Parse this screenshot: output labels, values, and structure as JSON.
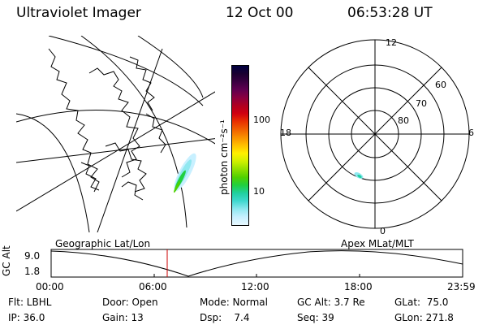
{
  "header": {
    "instrument": "Ultraviolet Imager",
    "date": "12 Oct 00",
    "time": "06:53:28 UT"
  },
  "colorbar": {
    "unit_label": "photon cm⁻²s⁻¹",
    "tick_labels": [
      "100",
      "10"
    ],
    "colors": [
      "#000040",
      "#1a0030",
      "#3a0040",
      "#600050",
      "#8a0040",
      "#b00020",
      "#d00010",
      "#e83000",
      "#f06000",
      "#f89000",
      "#ffc000",
      "#fff000",
      "#d0f000",
      "#90e000",
      "#50d000",
      "#20d040",
      "#20d0a0",
      "#40d8d0",
      "#90e8f0",
      "#c8f0ff",
      "#e8f8ff"
    ]
  },
  "left_map": {
    "projection_label": "Geographic Lat/Lon"
  },
  "right_map": {
    "projection_label": "Apex MLat/MLT",
    "mlt_labels": {
      "top": "12",
      "bottom": "0",
      "left": "18",
      "right": "6"
    },
    "mlat_labels": [
      "60",
      "70",
      "80"
    ]
  },
  "altitude_panel": {
    "axis_label": "GC Alt",
    "y_ticks": [
      "9.0",
      "1.8"
    ],
    "x_ticks": [
      "00:00",
      "06:00",
      "12:00",
      "18:00",
      "23:59"
    ],
    "marker_color": "#cc0000"
  },
  "footer": {
    "row1": {
      "filter": "Flt: LBHL",
      "door": "Door: Open",
      "mode": "Mode: Normal",
      "gc_alt": "GC Alt: 3.7 Re",
      "glat": "GLat:  75.0"
    },
    "row2": {
      "ip": "IP: 36.0",
      "gain": "Gain: 13",
      "dsp": "Dsp:    7.4",
      "seq": "Seq: 39",
      "glon": "GLon: 271.8"
    }
  }
}
